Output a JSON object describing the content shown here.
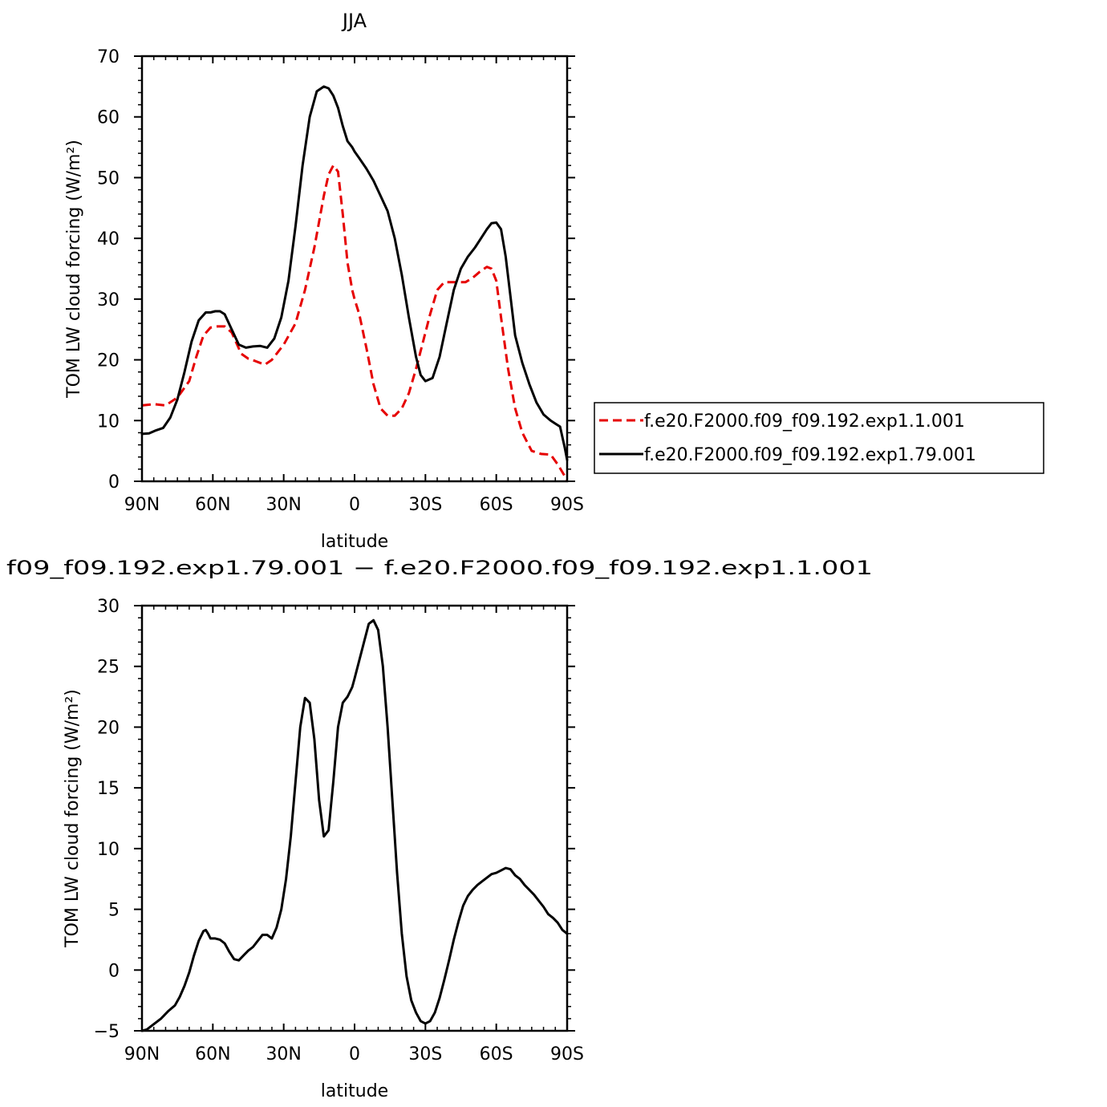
{
  "chart_data": [
    {
      "type": "line",
      "title": "JJA",
      "xlabel": "latitude",
      "ylabel": "TOM LW cloud forcing (W/m²)",
      "xlim": [
        90,
        -90
      ],
      "ylim": [
        0,
        70
      ],
      "xticks": [
        90,
        60,
        30,
        0,
        -30,
        -60,
        -90
      ],
      "xtick_labels": [
        "90N",
        "60N",
        "30N",
        "0",
        "30S",
        "60S",
        "90S"
      ],
      "yticks": [
        0,
        10,
        20,
        30,
        40,
        50,
        60,
        70
      ],
      "ytick_labels": [
        "0",
        "10",
        "20",
        "30",
        "40",
        "50",
        "60",
        "70"
      ],
      "legend_position": "right",
      "series": [
        {
          "name": "f.e20.F2000.f09_f09.192.exp1.1.001",
          "color": "#e60000",
          "dash": "dashed",
          "x": [
            90,
            85,
            80,
            75,
            70,
            67,
            64,
            61,
            58,
            55,
            52,
            48,
            45,
            42,
            38,
            35,
            30,
            25,
            21,
            17,
            13,
            11,
            9,
            7,
            5,
            3,
            1,
            0,
            -2,
            -5,
            -8,
            -11,
            -14,
            -17,
            -20,
            -23,
            -26,
            -29,
            -32,
            -35,
            -38,
            -41,
            -44,
            -47,
            -50,
            -53,
            -56,
            -58,
            -60,
            -62,
            -65,
            -68,
            -71,
            -75,
            -79,
            -83,
            -86,
            -88,
            -90
          ],
          "y": [
            12.5,
            12.7,
            12.5,
            13.8,
            16.5,
            20.5,
            24.0,
            25.3,
            25.5,
            25.5,
            24.5,
            21.0,
            20.2,
            19.8,
            19.2,
            20.0,
            22.5,
            26.0,
            31.5,
            38.5,
            47.0,
            50.5,
            52.0,
            51.0,
            44.0,
            36.0,
            31.5,
            30.0,
            27.5,
            22.0,
            16.0,
            12.0,
            10.8,
            10.8,
            12.0,
            14.5,
            18.5,
            23.0,
            27.5,
            31.5,
            32.8,
            32.8,
            32.8,
            32.8,
            33.5,
            34.5,
            35.3,
            35.0,
            33.0,
            27.0,
            18.5,
            12.0,
            8.0,
            5.0,
            4.5,
            4.4,
            2.8,
            1.5,
            0.2
          ]
        },
        {
          "name": "f.e20.F2000.f09_f09.192.exp1.79.001",
          "color": "#000000",
          "dash": "solid",
          "x": [
            90,
            87,
            84,
            81,
            78,
            75,
            72,
            69,
            66,
            63,
            61,
            59,
            57,
            55,
            52,
            49,
            46,
            43,
            40,
            37,
            34,
            31,
            28,
            25,
            22,
            19,
            16,
            13,
            11,
            9,
            7,
            5,
            3,
            1,
            0,
            -2,
            -5,
            -8,
            -11,
            -14,
            -17,
            -20,
            -23,
            -26,
            -28,
            -30,
            -33,
            -36,
            -39,
            -42,
            -45,
            -48,
            -51,
            -54,
            -56,
            -58,
            -60,
            -62,
            -64,
            -66,
            -68,
            -71,
            -74,
            -77,
            -80,
            -83,
            -85,
            -87,
            -89,
            -90
          ],
          "y": [
            7.8,
            7.9,
            8.4,
            8.8,
            10.5,
            13.5,
            18.0,
            23.0,
            26.5,
            27.8,
            27.8,
            28.0,
            28.0,
            27.5,
            25.0,
            22.5,
            22.0,
            22.2,
            22.3,
            22.0,
            23.5,
            27.0,
            33.0,
            42.0,
            52.0,
            60.0,
            64.2,
            65.0,
            64.7,
            63.5,
            61.5,
            58.5,
            56.0,
            55.0,
            54.3,
            53.2,
            51.5,
            49.5,
            47.0,
            44.5,
            40.0,
            34.0,
            27.0,
            20.5,
            17.5,
            16.5,
            17.0,
            20.5,
            26.0,
            31.5,
            35.0,
            37.0,
            38.5,
            40.3,
            41.5,
            42.5,
            42.6,
            41.5,
            37.0,
            30.5,
            24.0,
            19.5,
            16.0,
            13.0,
            11.0,
            10.0,
            9.5,
            9.0,
            5.5,
            3.5
          ]
        }
      ]
    },
    {
      "type": "line",
      "title": "f09_f09.192.exp1.79.001 − f.e20.F2000.f09_f09.192.exp1.1.001",
      "xlabel": "latitude",
      "ylabel": "TOM LW cloud forcing (W/m²)",
      "xlim": [
        90,
        -90
      ],
      "ylim": [
        -5,
        30
      ],
      "xticks": [
        90,
        60,
        30,
        0,
        -30,
        -60,
        -90
      ],
      "xtick_labels": [
        "90N",
        "60N",
        "30N",
        "0",
        "30S",
        "60S",
        "90S"
      ],
      "yticks": [
        -5,
        0,
        5,
        10,
        15,
        20,
        25,
        30
      ],
      "ytick_labels": [
        "−5",
        "0",
        "5",
        "10",
        "15",
        "20",
        "25",
        "30"
      ],
      "series": [
        {
          "color": "#000000",
          "dash": "solid",
          "x": [
            90,
            88,
            86,
            84,
            82,
            79,
            76,
            74,
            72,
            70,
            68,
            66,
            64,
            63,
            62,
            61,
            59,
            57,
            55,
            53,
            51,
            49,
            47,
            45,
            43,
            41,
            39,
            37,
            35,
            33,
            31,
            29,
            27,
            25,
            23,
            21,
            19,
            17,
            15,
            13,
            11,
            9,
            7,
            5,
            3,
            1,
            0,
            -2,
            -4,
            -6,
            -8,
            -10,
            -12,
            -14,
            -16,
            -18,
            -20,
            -22,
            -24,
            -26,
            -28,
            -30,
            -32,
            -34,
            -36,
            -38,
            -40,
            -42,
            -44,
            -46,
            -48,
            -50,
            -52,
            -54,
            -56,
            -58,
            -60,
            -62,
            -64,
            -66,
            -68,
            -70,
            -72,
            -74,
            -76,
            -78,
            -80,
            -82,
            -84,
            -86,
            -88,
            -90
          ],
          "y": [
            -5.0,
            -4.9,
            -4.6,
            -4.3,
            -4.0,
            -3.4,
            -2.9,
            -2.2,
            -1.3,
            -0.2,
            1.2,
            2.4,
            3.2,
            3.3,
            3.0,
            2.6,
            2.6,
            2.5,
            2.2,
            1.5,
            0.9,
            0.8,
            1.2,
            1.6,
            1.9,
            2.4,
            2.9,
            2.9,
            2.6,
            3.5,
            5.0,
            7.5,
            11.0,
            15.5,
            20.0,
            22.4,
            22.0,
            19.0,
            14.0,
            11.0,
            11.5,
            15.5,
            20.0,
            22.0,
            22.5,
            23.3,
            24.0,
            25.5,
            27.0,
            28.5,
            28.8,
            28.0,
            25.0,
            20.0,
            14.0,
            8.0,
            3.0,
            -0.5,
            -2.5,
            -3.5,
            -4.2,
            -4.4,
            -4.2,
            -3.5,
            -2.3,
            -0.8,
            0.8,
            2.5,
            4.0,
            5.3,
            6.1,
            6.6,
            7.0,
            7.3,
            7.6,
            7.9,
            8.0,
            8.2,
            8.4,
            8.3,
            7.8,
            7.5,
            7.0,
            6.6,
            6.2,
            5.7,
            5.2,
            4.6,
            4.3,
            3.9,
            3.3,
            3.0
          ]
        }
      ]
    }
  ]
}
